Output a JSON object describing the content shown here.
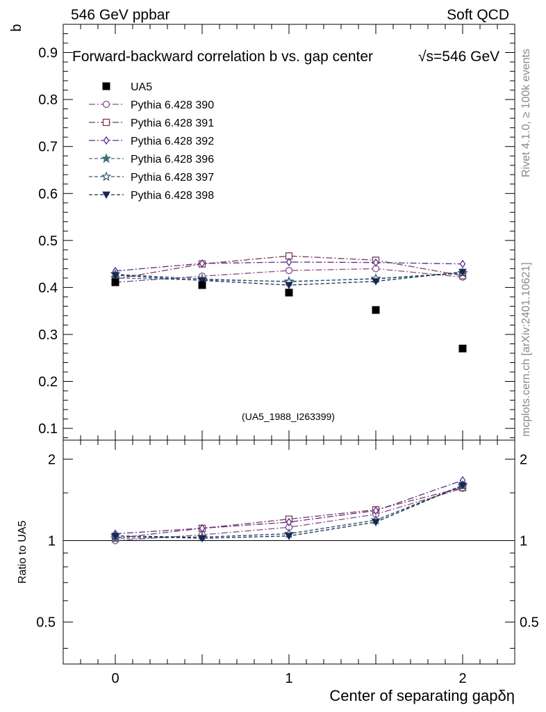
{
  "header": {
    "left": "546 GeV ppbar",
    "right": "Soft QCD"
  },
  "side_labels": {
    "rivet": "Rivet 4.1.0, ≥ 100k events",
    "mcplots": "mcplots.cern.ch [arXiv:2401.10621]"
  },
  "chart_data": {
    "type": "scatter",
    "title": "Forward-backward correlation b  vs. gap center",
    "energy_label": "√s=546 GeV",
    "watermark": "(UA5_1988_I263399)",
    "xlabel": "Center of separating gapδη",
    "ylabel": "b",
    "ratio_ylabel": "Ratio to UA5",
    "xlim": [
      -0.3,
      2.3
    ],
    "ylim": [
      0.075,
      0.96
    ],
    "ratio_ylim": [
      0.35,
      2.35
    ],
    "x_ticks": [
      0,
      1,
      2
    ],
    "x_tick_labels": [
      "0",
      "1",
      "2"
    ],
    "y_ticks": [
      0.1,
      0.2,
      0.3,
      0.4,
      0.5,
      0.6,
      0.7,
      0.8,
      0.9
    ],
    "y_tick_labels": [
      "0.1",
      "0.2",
      "0.3",
      "0.4",
      "0.5",
      "0.6",
      "0.7",
      "0.8",
      "0.9"
    ],
    "ratio_ticks": [
      0.5,
      1,
      2
    ],
    "ratio_tick_labels": [
      "0.5",
      "1",
      "2"
    ],
    "x": [
      0,
      0.5,
      1,
      1.5,
      2
    ],
    "reference": {
      "name": "UA5",
      "values": [
        0.411,
        0.405,
        0.389,
        0.352,
        0.27
      ],
      "color": "#000000",
      "marker": "square-filled"
    },
    "series": [
      {
        "name": "Pythia 6.428 390",
        "values": [
          0.411,
          0.424,
          0.436,
          0.44,
          0.422
        ],
        "ratio": [
          1.0,
          1.05,
          1.12,
          1.25,
          1.56
        ],
        "color": "#8a4a8a",
        "marker": "circle-open",
        "dash": "9 3 2 3"
      },
      {
        "name": "Pythia 6.428 391",
        "values": [
          0.418,
          0.45,
          0.467,
          0.458,
          0.425
        ],
        "ratio": [
          1.02,
          1.11,
          1.2,
          1.3,
          1.57
        ],
        "color": "#7a3a52",
        "marker": "square-open",
        "dash": "9 3 2 3"
      },
      {
        "name": "Pythia 6.428 392",
        "values": [
          0.435,
          0.451,
          0.454,
          0.453,
          0.45
        ],
        "ratio": [
          1.06,
          1.11,
          1.17,
          1.29,
          1.67
        ],
        "color": "#5a2a8a",
        "marker": "diamond-open",
        "dash": "9 3 2 3"
      },
      {
        "name": "Pythia 6.428 396",
        "values": [
          0.42,
          0.416,
          0.413,
          0.418,
          0.43
        ],
        "ratio": [
          1.02,
          1.03,
          1.06,
          1.19,
          1.59
        ],
        "color": "#3f6f82",
        "marker": "star-filled",
        "dash": "5 3"
      },
      {
        "name": "Pythia 6.428 397",
        "values": [
          0.428,
          0.418,
          0.412,
          0.419,
          0.431
        ],
        "ratio": [
          1.04,
          1.03,
          1.06,
          1.19,
          1.6
        ],
        "color": "#2f5a78",
        "marker": "star-open",
        "dash": "5 3"
      },
      {
        "name": "Pythia 6.428 398",
        "values": [
          0.426,
          0.415,
          0.405,
          0.413,
          0.433
        ],
        "ratio": [
          1.04,
          1.02,
          1.04,
          1.17,
          1.6
        ],
        "color": "#1c2750",
        "marker": "triangle-down-filled",
        "dash": "5 3"
      }
    ]
  }
}
